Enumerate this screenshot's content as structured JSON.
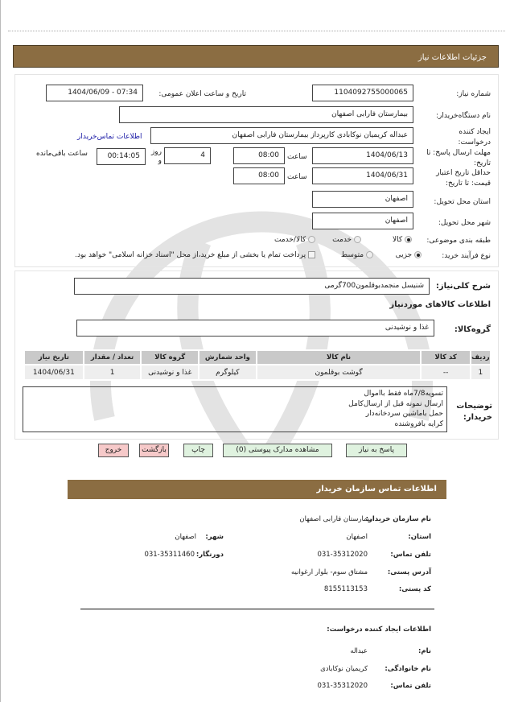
{
  "page": {
    "title": "جزئیات اطلاعات نیاز"
  },
  "colors": {
    "header": "#8B6D42",
    "button_green": "#dff2df",
    "button_red": "#f6c9c9",
    "link": "#1a1aa6"
  },
  "need": {
    "number_label": "شماره نیاز:",
    "number": "1104092755000065",
    "announce_label": "تاریخ و ساعت اعلان عمومی:",
    "announce": "1404/06/09 - 07:34",
    "buyer_label": "نام دستگاه‌خریدار:",
    "buyer": "بیمارستان فارابی اصفهان",
    "creator_label": "ایجاد کننده درخواست:",
    "creator": "عبداله کریمیان نوکابادی کارپرداز بیمارستان فارابی اصفهان",
    "contact_link": "اطلاعات تماس‌خریدار",
    "deadline_label": "مهلت ارسال پاسخ: تا تاریخ:",
    "deadline_date": "1404/06/13",
    "time_label": "ساعت",
    "deadline_time": "08:00",
    "days": "4",
    "days_label": "روز و",
    "remaining": "00:14:05",
    "remaining_label": "ساعت باقی‌مانده",
    "validity_label": "حداقل تاریخ اعتبار قیمت: تا تاریخ:",
    "validity_date": "1404/06/31",
    "validity_time": "08:00",
    "province_label": "استان محل تحویل:",
    "province": "اصفهان",
    "city_label": "شهر محل تحویل:",
    "city": "اصفهان",
    "category_label": "طبقه بندی موضوعی:",
    "category_options": [
      "کالا",
      "خدمت",
      "کالا/خدمت"
    ],
    "category_selected": "کالا",
    "process_label": "نوع فرآیند خرید:",
    "process_options": [
      "جزیی",
      "متوسط"
    ],
    "process_selected": "جزیی",
    "payment_note": "پرداخت تمام یا بخشی از مبلغ خرید،از محل \"اسناد خزانه اسلامی\" خواهد بود."
  },
  "goods": {
    "summary_label": "شرح کلی‌نیاز:",
    "summary": "شنیسل منجمدبوقلمون700گرمی",
    "section_title": "اطلاعات کالاهای موردنیاز",
    "group_label": "گروه‌کالا:",
    "group": "غذا و نوشیدنی",
    "columns": [
      "ردیف",
      "کد کالا",
      "نام کالا",
      "واحد شمارش",
      "گروه کالا",
      "تعداد / مقدار",
      "تاریخ نیاز"
    ],
    "rows": [
      [
        "1",
        "--",
        "گوشت بوقلمون",
        "کیلوگرم",
        "غذا و نوشیدنی",
        "1",
        "1404/06/31"
      ]
    ],
    "notes_label": "توضیحات خریدار:",
    "notes": [
      "تسویه7/8ماه فقط بااموال",
      "ارسال نمونه قبل از ارسال‌کامل",
      "حمل باماشین سردخانه‌دار",
      "کرایه بافروشنده"
    ]
  },
  "buttons": {
    "reply": "پاسخ به نیاز",
    "attachments": "مشاهده مدارک پیوستی (0)",
    "print": "چاپ",
    "back": "بازگشت",
    "exit": "خروج"
  },
  "contact": {
    "title": "اطلاعات تماس سازمان خریدار",
    "org_label": "نام سازمان خریدار:",
    "org": "بیمارستان فارابی اصفهان",
    "province_label": "استان:",
    "province": "اصفهان",
    "city_label": "شهر:",
    "city": "اصفهان",
    "phone_label": "تلفن تماس:",
    "phone": "031-35312020",
    "fax_label": "دورنگار:",
    "fax": "031-35311460",
    "address_label": "آدرس پستی:",
    "address": "مشتاق سوم- بلوار ارغوانیه",
    "postal_label": "کد پستی:",
    "postal": "8155113153",
    "creator_title": "اطلاعات ایجاد کننده درخواست:",
    "name_label": "نام:",
    "name": "عبداله",
    "family_label": "نام خانوادگی:",
    "family": "کریمیان نوکابادی",
    "cphone_label": "تلفن تماس:",
    "cphone": "031-35312020"
  }
}
